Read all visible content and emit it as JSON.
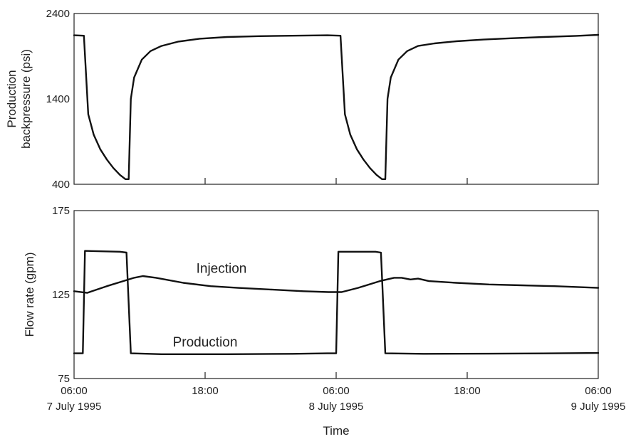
{
  "chart_data": [
    {
      "type": "line",
      "ylabel": "Production backpressure (psi)",
      "ylim": [
        400,
        2400
      ],
      "yticks": [
        "2400",
        "1400",
        "400"
      ],
      "xlim_hours": [
        0,
        48
      ],
      "series": [
        {
          "points": [
            [
              0,
              2145
            ],
            [
              0.9,
              2140
            ],
            [
              1.3,
              1220
            ],
            [
              1.8,
              980
            ],
            [
              2.4,
              810
            ],
            [
              3.0,
              690
            ],
            [
              3.6,
              590
            ],
            [
              4.2,
              510
            ],
            [
              4.7,
              460
            ],
            [
              5.0,
              460
            ],
            [
              5.2,
              1400
            ],
            [
              5.5,
              1650
            ],
            [
              6.2,
              1860
            ],
            [
              7.0,
              1960
            ],
            [
              8.0,
              2020
            ],
            [
              9.5,
              2070
            ],
            [
              11.5,
              2105
            ],
            [
              14.0,
              2125
            ],
            [
              17.0,
              2135
            ],
            [
              20.0,
              2140
            ],
            [
              23.2,
              2145
            ],
            [
              24.4,
              2140
            ],
            [
              24.8,
              1220
            ],
            [
              25.3,
              980
            ],
            [
              25.9,
              810
            ],
            [
              26.5,
              690
            ],
            [
              27.1,
              590
            ],
            [
              27.7,
              510
            ],
            [
              28.2,
              460
            ],
            [
              28.5,
              460
            ],
            [
              28.7,
              1400
            ],
            [
              29.0,
              1650
            ],
            [
              29.7,
              1860
            ],
            [
              30.5,
              1960
            ],
            [
              31.5,
              2020
            ],
            [
              33.0,
              2050
            ],
            [
              35.0,
              2075
            ],
            [
              37.5,
              2095
            ],
            [
              40.0,
              2110
            ],
            [
              43.0,
              2125
            ],
            [
              46.0,
              2138
            ],
            [
              48.0,
              2150
            ]
          ]
        }
      ]
    },
    {
      "type": "line",
      "ylabel": "Flow rate (gpm)",
      "xlabel": "Time",
      "ylim": [
        75,
        175
      ],
      "yticks": [
        "175",
        "125",
        "75"
      ],
      "xticks": [
        {
          "time": "06:00",
          "date": "7 July 1995"
        },
        {
          "time": "18:00",
          "date": ""
        },
        {
          "time": "06:00",
          "date": "8 July 1995"
        },
        {
          "time": "18:00",
          "date": ""
        },
        {
          "time": "06:00",
          "date": "9 July 1995"
        }
      ],
      "series": [
        {
          "name": "Injection",
          "label_at": [
            13.5,
            138
          ],
          "points": [
            [
              0,
              127
            ],
            [
              1.2,
              126
            ],
            [
              3.0,
              130
            ],
            [
              4.5,
              133
            ],
            [
              5.5,
              135
            ],
            [
              6.3,
              136
            ],
            [
              7.5,
              135
            ],
            [
              10.0,
              132
            ],
            [
              12.5,
              130
            ],
            [
              15.0,
              129
            ],
            [
              18.0,
              128
            ],
            [
              21.0,
              127
            ],
            [
              23.3,
              126.5
            ],
            [
              24.5,
              126.5
            ],
            [
              26.0,
              129
            ],
            [
              28.0,
              133
            ],
            [
              29.3,
              135
            ],
            [
              30.0,
              135
            ],
            [
              30.8,
              134
            ],
            [
              31.5,
              134.5
            ],
            [
              32.5,
              133
            ],
            [
              35.0,
              132
            ],
            [
              38.0,
              131
            ],
            [
              41.0,
              130.5
            ],
            [
              44.0,
              130
            ],
            [
              48.0,
              129
            ]
          ]
        },
        {
          "name": "Production",
          "label_at": [
            12.0,
            94
          ],
          "points": [
            [
              0,
              90
            ],
            [
              0.8,
              90
            ],
            [
              1.0,
              151
            ],
            [
              4.2,
              150.5
            ],
            [
              4.8,
              150
            ],
            [
              5.2,
              90
            ],
            [
              8.0,
              89.5
            ],
            [
              14.0,
              89.5
            ],
            [
              20.0,
              89.7
            ],
            [
              23.2,
              90
            ],
            [
              24.0,
              90
            ],
            [
              24.2,
              150.5
            ],
            [
              27.6,
              150.5
            ],
            [
              28.1,
              150
            ],
            [
              28.5,
              90
            ],
            [
              32.0,
              89.7
            ],
            [
              38.0,
              89.8
            ],
            [
              44.0,
              90
            ],
            [
              48.0,
              90.2
            ]
          ]
        }
      ]
    }
  ]
}
